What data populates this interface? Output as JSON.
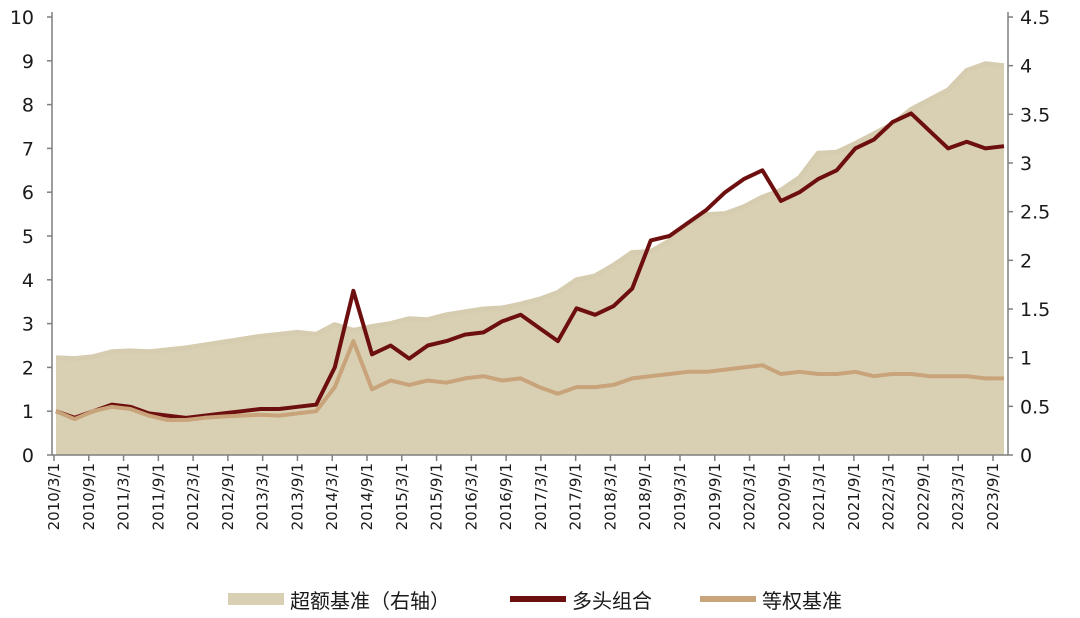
{
  "chart_data": {
    "type": "line",
    "x_ticks": [
      "2010/3/1",
      "2010/9/1",
      "2011/3/1",
      "2011/9/1",
      "2012/3/1",
      "2012/9/1",
      "2013/3/1",
      "2013/9/1",
      "2014/3/1",
      "2014/9/1",
      "2015/3/1",
      "2015/9/1",
      "2016/3/1",
      "2016/9/1",
      "2017/3/1",
      "2017/9/1",
      "2018/3/1",
      "2018/9/1",
      "2019/3/1",
      "2019/9/1",
      "2020/3/1",
      "2020/9/1",
      "2021/3/1",
      "2021/9/1",
      "2022/3/1",
      "2022/9/1",
      "2023/3/1",
      "2023/9/1"
    ],
    "y_left_ticks": [
      "0",
      "1",
      "2",
      "3",
      "4",
      "5",
      "6",
      "7",
      "8",
      "9",
      "10"
    ],
    "y_right_ticks": [
      "0",
      "0.5",
      "1",
      "1.5",
      "2",
      "2.5",
      "3",
      "3.5",
      "4",
      "4.5"
    ],
    "ylim_left": [
      0,
      10
    ],
    "ylim_right": [
      0,
      4.5
    ],
    "grid": false,
    "legend_position": "bottom",
    "series": [
      {
        "name": "超额基准（右轴）",
        "axis": "right",
        "style": "area",
        "color": "#d9d0b4",
        "line_color": "#d6ccaf",
        "values": [
          1.0,
          0.99,
          1.01,
          1.06,
          1.07,
          1.06,
          1.08,
          1.1,
          1.13,
          1.16,
          1.19,
          1.22,
          1.24,
          1.26,
          1.24,
          1.34,
          1.28,
          1.32,
          1.35,
          1.4,
          1.39,
          1.44,
          1.47,
          1.5,
          1.51,
          1.55,
          1.6,
          1.67,
          1.8,
          1.84,
          1.95,
          2.08,
          2.09,
          2.2,
          2.38,
          2.47,
          2.48,
          2.55,
          2.65,
          2.72,
          2.85,
          3.1,
          3.11,
          3.2,
          3.3,
          3.4,
          3.55,
          3.65,
          3.75,
          3.95,
          4.02,
          4.0
        ]
      },
      {
        "name": "多头组合",
        "axis": "left",
        "style": "line",
        "color": "#6e0f0f",
        "values": [
          1.0,
          0.85,
          1.0,
          1.15,
          1.1,
          0.95,
          0.9,
          0.85,
          0.9,
          0.95,
          1.0,
          1.05,
          1.05,
          1.1,
          1.15,
          2.0,
          3.75,
          2.3,
          2.5,
          2.2,
          2.5,
          2.6,
          2.75,
          2.8,
          3.05,
          3.2,
          2.9,
          2.6,
          3.35,
          3.2,
          3.4,
          3.8,
          4.9,
          5.0,
          5.3,
          5.6,
          6.0,
          6.3,
          6.5,
          5.8,
          6.0,
          6.3,
          6.5,
          7.0,
          7.2,
          7.6,
          7.8,
          7.4,
          7.0,
          7.15,
          7.0,
          7.05
        ]
      },
      {
        "name": "等权基准",
        "axis": "left",
        "style": "line",
        "color": "#c9a37a",
        "values": [
          1.0,
          0.82,
          1.0,
          1.1,
          1.05,
          0.9,
          0.8,
          0.8,
          0.85,
          0.88,
          0.9,
          0.92,
          0.9,
          0.95,
          1.0,
          1.55,
          2.6,
          1.5,
          1.7,
          1.6,
          1.7,
          1.65,
          1.75,
          1.8,
          1.7,
          1.75,
          1.55,
          1.4,
          1.55,
          1.55,
          1.6,
          1.75,
          1.8,
          1.85,
          1.9,
          1.9,
          1.95,
          2.0,
          2.05,
          1.85,
          1.9,
          1.85,
          1.85,
          1.9,
          1.8,
          1.85,
          1.85,
          1.8,
          1.8,
          1.8,
          1.75,
          1.75
        ]
      }
    ]
  }
}
